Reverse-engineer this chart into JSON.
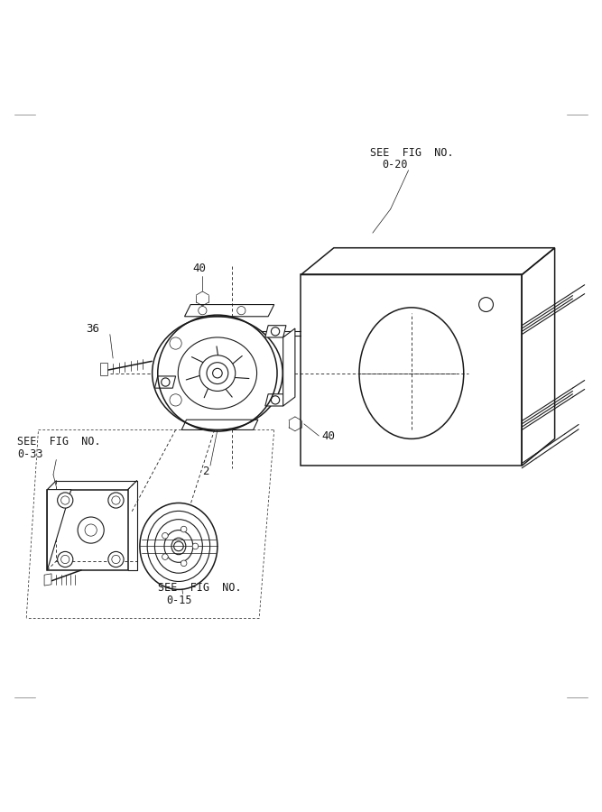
{
  "bg_color": "#ffffff",
  "line_color": "#1a1a1a",
  "fig_width": 6.67,
  "fig_height": 9.0,
  "dpi": 100,
  "labels": {
    "see_fig_20_line1": "SEE  FIG  NO.",
    "see_fig_20_line2": "0-20",
    "see_fig_33_line1": "SEE  FIG  NO.",
    "see_fig_33_line2": "0-33",
    "see_fig_15_line1": "SEE  FIG  NO.",
    "see_fig_15_line2": "0-15",
    "label_40a": "40",
    "label_36": "36",
    "label_2": "2",
    "label_40b": "40"
  }
}
